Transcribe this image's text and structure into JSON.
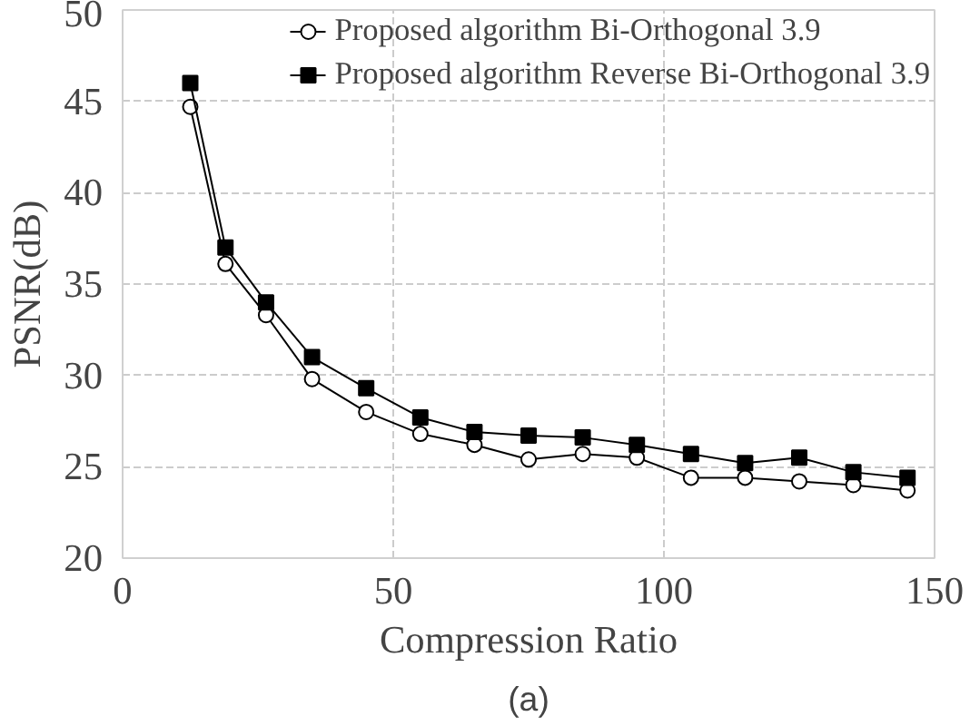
{
  "chart_data": {
    "type": "line",
    "xlabel": "Compression Ratio",
    "ylabel": "PSNR(dB)",
    "annotations": [
      "(a)"
    ],
    "x": [
      12.5,
      19,
      26.5,
      35,
      45,
      55,
      65,
      75,
      85,
      95,
      105,
      115,
      125,
      135,
      145
    ],
    "series": [
      {
        "name": "Proposed algorithm Bi-Orthogonal 3.9",
        "color": "#000000",
        "marker": "circle",
        "values": [
          44.7,
          36.1,
          33.3,
          29.8,
          28.0,
          26.8,
          26.2,
          25.4,
          25.7,
          25.5,
          24.4,
          24.4,
          24.2,
          24.0,
          23.7
        ]
      },
      {
        "name": "Proposed algorithm Reverse Bi-Orthogonal 3.9",
        "color": "#000000",
        "marker": "square",
        "values": [
          46.0,
          37.0,
          34.0,
          31.0,
          29.3,
          27.7,
          26.9,
          26.7,
          26.6,
          26.2,
          25.7,
          25.2,
          25.5,
          24.7,
          24.4
        ]
      }
    ],
    "xlim": [
      0,
      150
    ],
    "xticks": [
      0,
      50,
      100,
      150
    ],
    "ylim": [
      20,
      50
    ],
    "yticks": [
      20,
      25,
      30,
      35,
      40,
      45,
      50
    ],
    "grid": true,
    "legend": "top right",
    "line_style": "solid"
  }
}
